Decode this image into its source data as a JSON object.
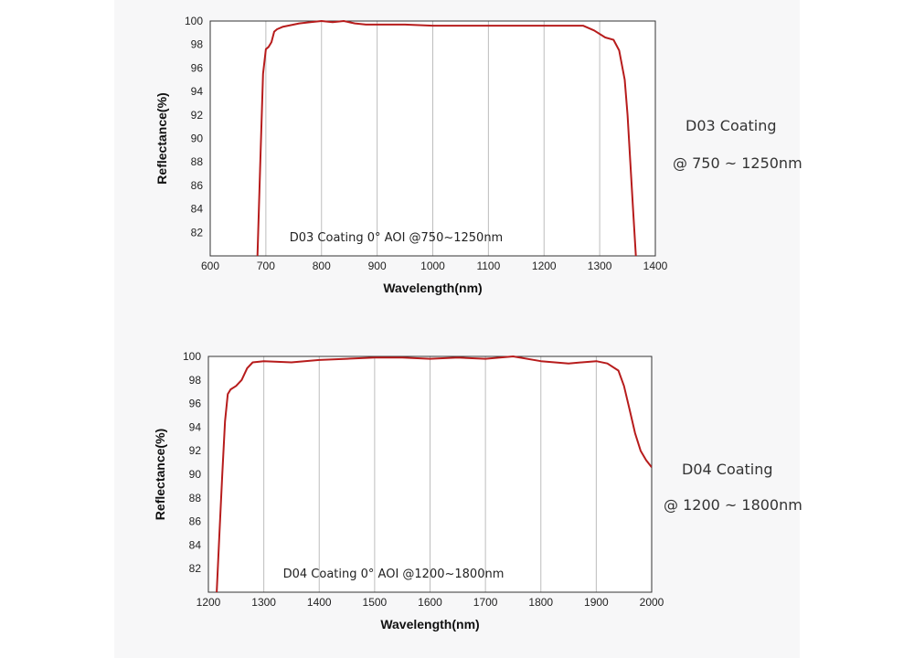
{
  "colors": {
    "curve": "#b71c1c",
    "grid": "#bdbdbd",
    "axis": "#333333",
    "plot_bg": "#ffffff",
    "panel_bg": "#f7f7f8"
  },
  "chart_data": [
    {
      "type": "line",
      "annotation": "D03 Coating  0°  AOI @750~1250nm",
      "xlabel": "Wavelength(nm)",
      "ylabel": "Reflectance(%)",
      "xlim": [
        600,
        1400
      ],
      "ylim": [
        80,
        100
      ],
      "x_ticks": [
        600,
        700,
        800,
        900,
        1000,
        1100,
        1200,
        1300,
        1400
      ],
      "y_ticks": [
        82,
        84,
        86,
        88,
        90,
        92,
        94,
        96,
        98,
        100
      ],
      "grid": "vertical",
      "series": [
        {
          "x": [
            685,
            690,
            695,
            700,
            705,
            710,
            715,
            720,
            730,
            740,
            750,
            760,
            780,
            800,
            820,
            840,
            860,
            880,
            900,
            950,
            1000,
            1050,
            1100,
            1150,
            1200,
            1250,
            1270,
            1290,
            1310,
            1325,
            1335,
            1345,
            1350,
            1355,
            1360,
            1365
          ],
          "y": [
            80,
            88,
            95.5,
            97.6,
            97.8,
            98.2,
            99.1,
            99.3,
            99.5,
            99.6,
            99.7,
            99.8,
            99.9,
            100,
            99.9,
            100,
            99.8,
            99.7,
            99.7,
            99.7,
            99.6,
            99.6,
            99.6,
            99.6,
            99.6,
            99.6,
            99.6,
            99.2,
            98.6,
            98.4,
            97.5,
            95,
            92,
            88,
            84,
            80
          ]
        }
      ],
      "side_labels": [
        "D03 Coating",
        "@ 750 ~ 1250nm"
      ]
    },
    {
      "type": "line",
      "annotation": "D04 Coating  0°  AOI @1200~1800nm",
      "xlabel": "Wavelength(nm)",
      "ylabel": "Reflectance(%)",
      "xlim": [
        1200,
        2000
      ],
      "ylim": [
        80,
        100
      ],
      "x_ticks": [
        1200,
        1300,
        1400,
        1500,
        1600,
        1700,
        1800,
        1900,
        2000
      ],
      "y_ticks": [
        82,
        84,
        86,
        88,
        90,
        92,
        94,
        96,
        98,
        100
      ],
      "grid": "vertical",
      "series": [
        {
          "x": [
            1215,
            1220,
            1225,
            1230,
            1235,
            1240,
            1250,
            1260,
            1270,
            1280,
            1300,
            1350,
            1400,
            1450,
            1500,
            1550,
            1600,
            1650,
            1700,
            1750,
            1800,
            1850,
            1900,
            1920,
            1940,
            1950,
            1960,
            1970,
            1980,
            1990,
            2000
          ],
          "y": [
            80,
            85,
            90,
            94.5,
            96.8,
            97.2,
            97.5,
            98,
            99,
            99.5,
            99.6,
            99.5,
            99.7,
            99.8,
            99.9,
            99.9,
            99.8,
            99.9,
            99.8,
            100,
            99.6,
            99.4,
            99.6,
            99.4,
            98.8,
            97.5,
            95.5,
            93.5,
            92,
            91.2,
            90.6
          ]
        }
      ],
      "side_labels": [
        "D04 Coating",
        "@ 1200 ~ 1800nm"
      ]
    }
  ]
}
